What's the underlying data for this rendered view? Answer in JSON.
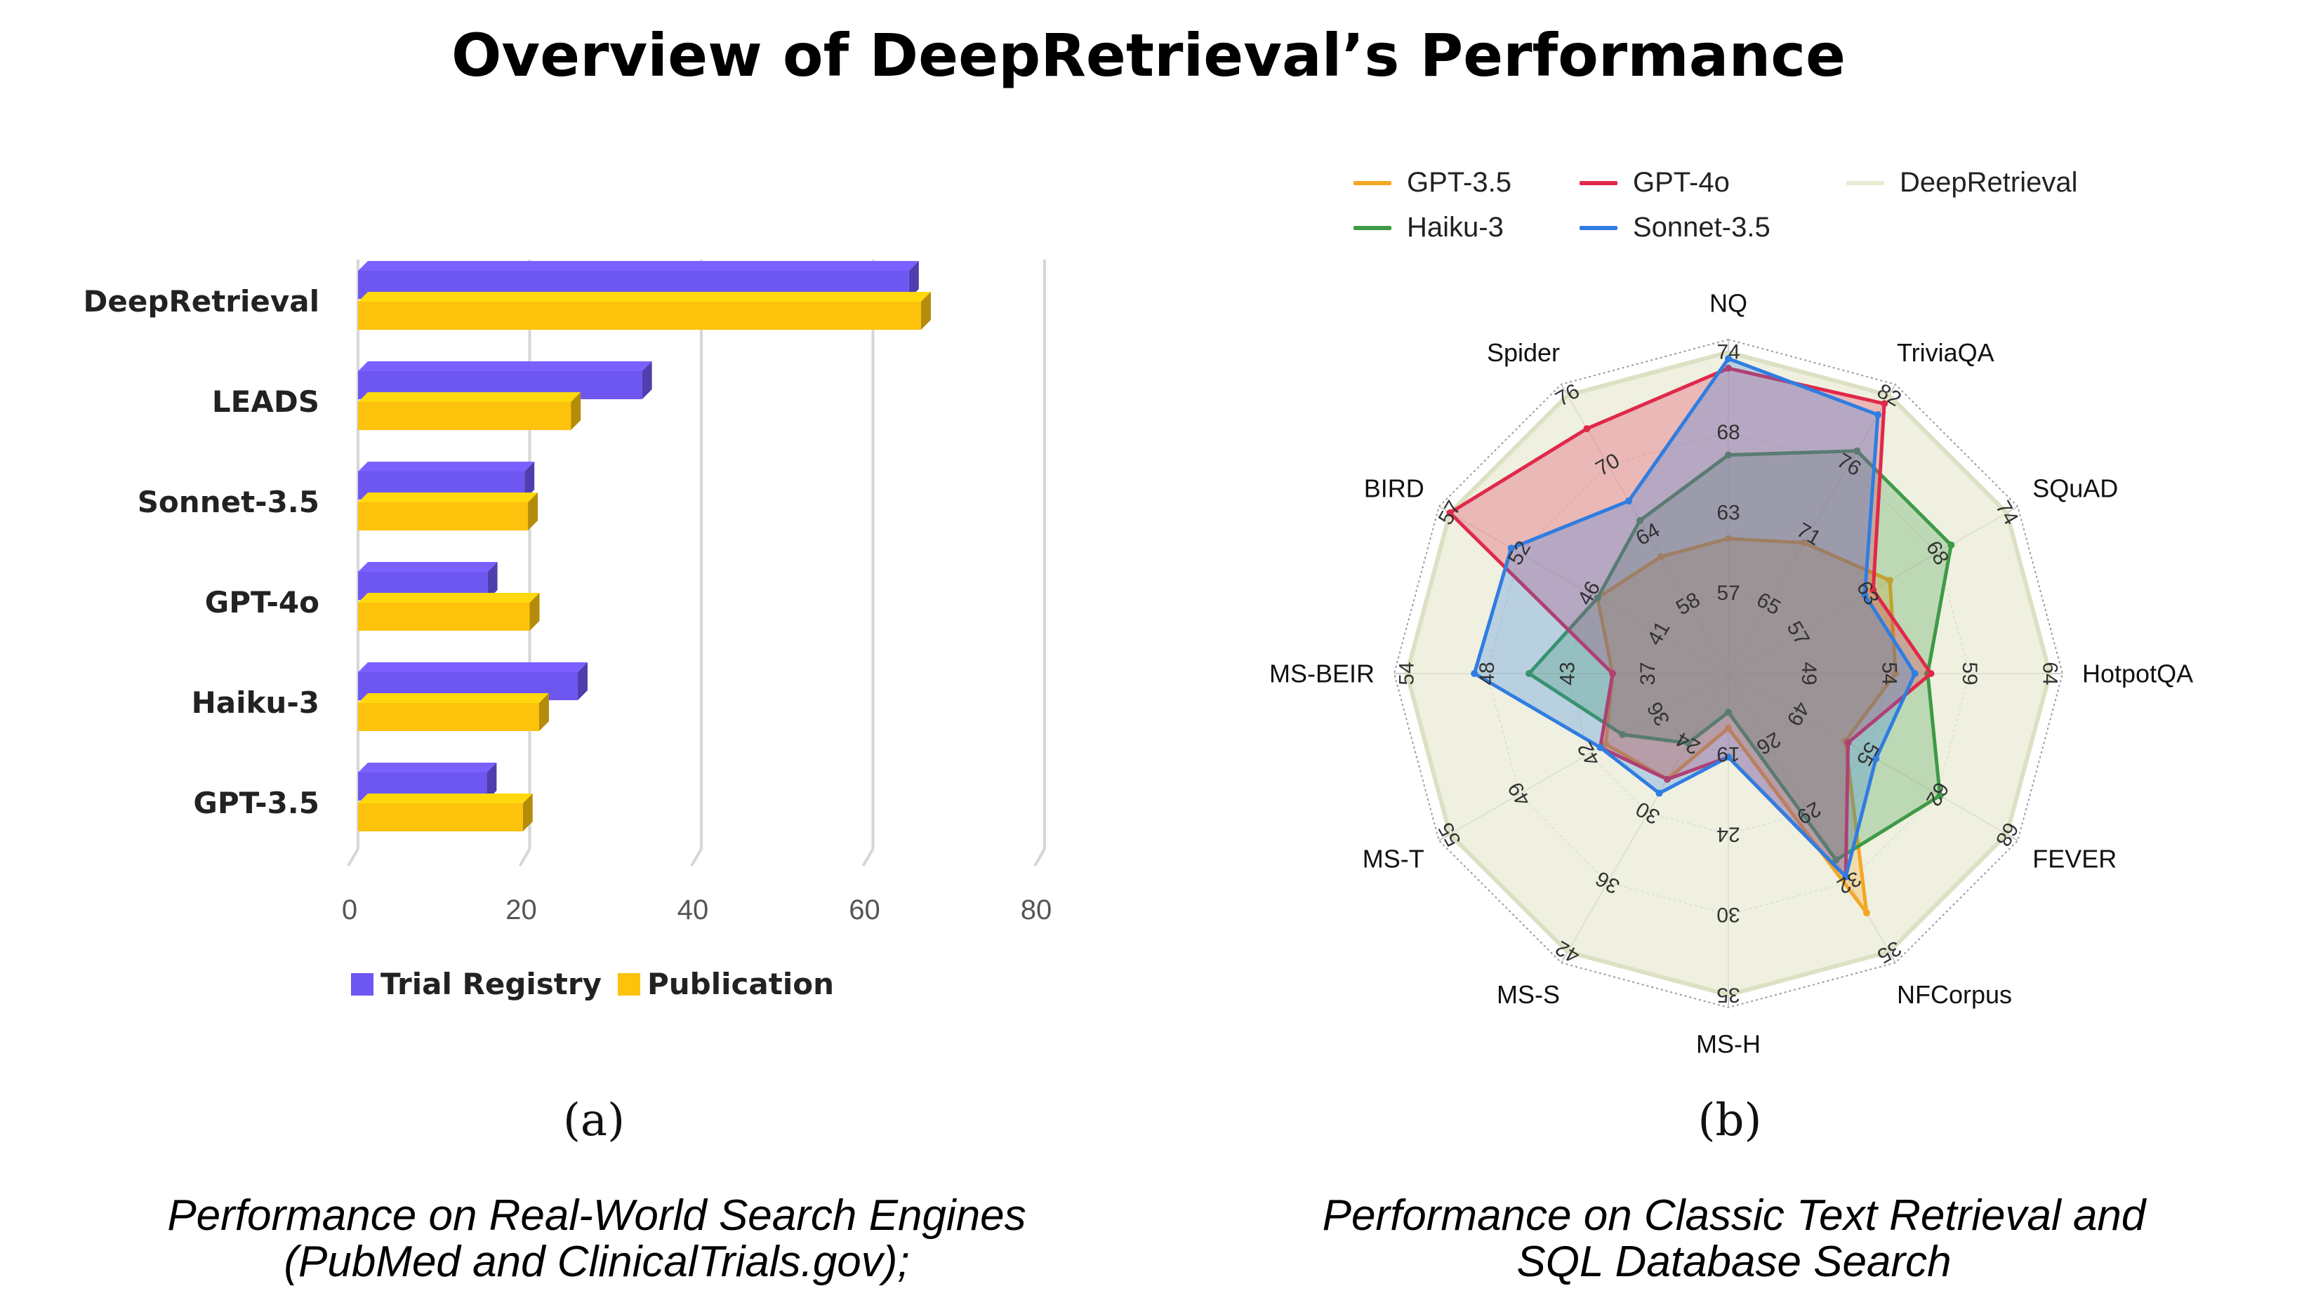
{
  "title": "Overview of DeepRetrieval’s Performance",
  "panels": {
    "a": {
      "tag": "(a)",
      "caption_line1": "Performance on Real-World Search Engines",
      "caption_line2": "(PubMed and ClinicalTrials.gov);"
    },
    "b": {
      "tag": "(b)",
      "caption_line1": "Performance on Classic Text Retrieval and",
      "caption_line2": "SQL Database Search"
    }
  },
  "chart_data": [
    {
      "type": "bar",
      "orientation": "horizontal",
      "categories": [
        "DeepRetrieval",
        "LEADS",
        "Sonnet-3.5",
        "GPT-4o",
        "Haiku-3",
        "GPT-3.5"
      ],
      "series": [
        {
          "name": "Trial Registry",
          "color": "#6e56f0",
          "values": [
            64.2,
            33.1,
            19.4,
            15.1,
            25.6,
            15.0
          ]
        },
        {
          "name": "Publication",
          "color": "#fcc20c",
          "values": [
            65.6,
            24.8,
            19.8,
            20.0,
            21.1,
            19.2
          ]
        }
      ],
      "xlim": [
        0,
        80
      ],
      "xticks": [
        "0",
        "20",
        "40",
        "60",
        "80"
      ],
      "grid": true,
      "legend": "bottom"
    },
    {
      "type": "radar",
      "axes": [
        "NQ",
        "TriviaQA",
        "SQuAD",
        "HotpotQA",
        "FEVER",
        "NFCorpus",
        "MS-H",
        "MS-S",
        "MS-T",
        "MS-BEIR",
        "BIRD",
        "Spider"
      ],
      "axis_ticks": [
        [
          "57",
          "63",
          "68",
          "74"
        ],
        [
          "65",
          "71",
          "76",
          "82"
        ],
        [
          "57",
          "63",
          "68",
          "74"
        ],
        [
          "49",
          "54",
          "59",
          "64"
        ],
        [
          "49",
          "55",
          "62",
          "68"
        ],
        [
          "26",
          "29",
          "32",
          "35"
        ],
        [
          "19",
          "24",
          "30",
          "35"
        ],
        [
          "24",
          "30",
          "36",
          "42"
        ],
        [
          "36",
          "42",
          "49",
          "55"
        ],
        [
          "37",
          "43",
          "48",
          "54"
        ],
        [
          "41",
          "46",
          "52",
          "57"
        ],
        [
          "58",
          "64",
          "70",
          "76"
        ]
      ],
      "series": [
        {
          "name": "GPT-3.5",
          "color": "#f5a623",
          "values": [
            0.42,
            0.47,
            0.58,
            0.52,
            0.42,
            0.86,
            0.17,
            0.38,
            0.44,
            0.36,
            0.47,
            0.42
          ]
        },
        {
          "name": "Haiku-3",
          "color": "#3d9a46",
          "values": [
            0.68,
            0.8,
            0.8,
            0.62,
            0.76,
            0.67,
            0.12,
            0.25,
            0.38,
            0.62,
            0.47,
            0.55
          ]
        },
        {
          "name": "GPT-4o",
          "color": "#e0294a",
          "values": [
            0.95,
            0.97,
            0.52,
            0.63,
            0.43,
            0.73,
            0.26,
            0.38,
            0.46,
            0.36,
            1.0,
            0.88
          ]
        },
        {
          "name": "Sonnet-3.5",
          "color": "#2f7de1",
          "values": [
            0.98,
            0.93,
            0.49,
            0.58,
            0.53,
            0.73,
            0.26,
            0.43,
            0.46,
            0.79,
            0.78,
            0.62
          ]
        },
        {
          "name": "DeepRetrieval",
          "color": "#e8ead2",
          "values": [
            1.0,
            1.0,
            1.0,
            1.0,
            1.0,
            1.0,
            1.0,
            1.0,
            1.0,
            1.0,
            1.0,
            1.0
          ]
        }
      ],
      "legend": "top"
    }
  ]
}
